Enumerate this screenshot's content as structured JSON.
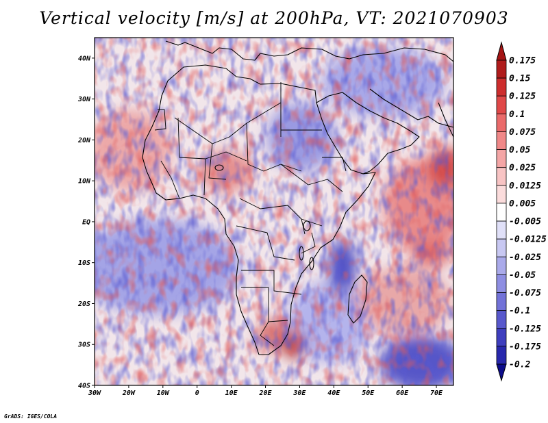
{
  "title": "Vertical velocity [m/s] at 200hPa, VT: 2021070903",
  "credit": "GrADS: IGES/COLA",
  "map": {
    "lon_range": [
      -30,
      75
    ],
    "lat_range": [
      -40,
      45
    ],
    "lat_ticks": [
      "40N",
      "30N",
      "20N",
      "10N",
      "EQ",
      "10S",
      "20S",
      "30S",
      "40S"
    ],
    "lon_ticks": [
      "30W",
      "20W",
      "10W",
      "0",
      "10E",
      "20E",
      "30E",
      "40E",
      "50E",
      "60E",
      "70E"
    ]
  },
  "colorbar": {
    "labels": [
      "0.175",
      "0.15",
      "0.125",
      "0.1",
      "0.075",
      "0.05",
      "0.025",
      "0.0125",
      "0.005",
      "-0.005",
      "-0.0125",
      "-0.025",
      "-0.05",
      "-0.075",
      "-0.1",
      "-0.125",
      "-0.175",
      "-0.2"
    ],
    "colors": [
      "#b01c1c",
      "#cd2d2d",
      "#e04848",
      "#ea6a6a",
      "#f08888",
      "#f4a6a6",
      "#f8c4c4",
      "#fbdcdc",
      "#ffffff",
      "#e0e0f8",
      "#c8c8f2",
      "#aaaaea",
      "#8e8ee2",
      "#7272d8",
      "#5858cc",
      "#3e3ebe",
      "#2828ac",
      "#18189a"
    ],
    "max_color": "#a41414",
    "min_color": "#0c0c8a"
  },
  "colors": {
    "positive": "#e06060",
    "negative": "#6a6ad8",
    "coastline": "#000000"
  }
}
